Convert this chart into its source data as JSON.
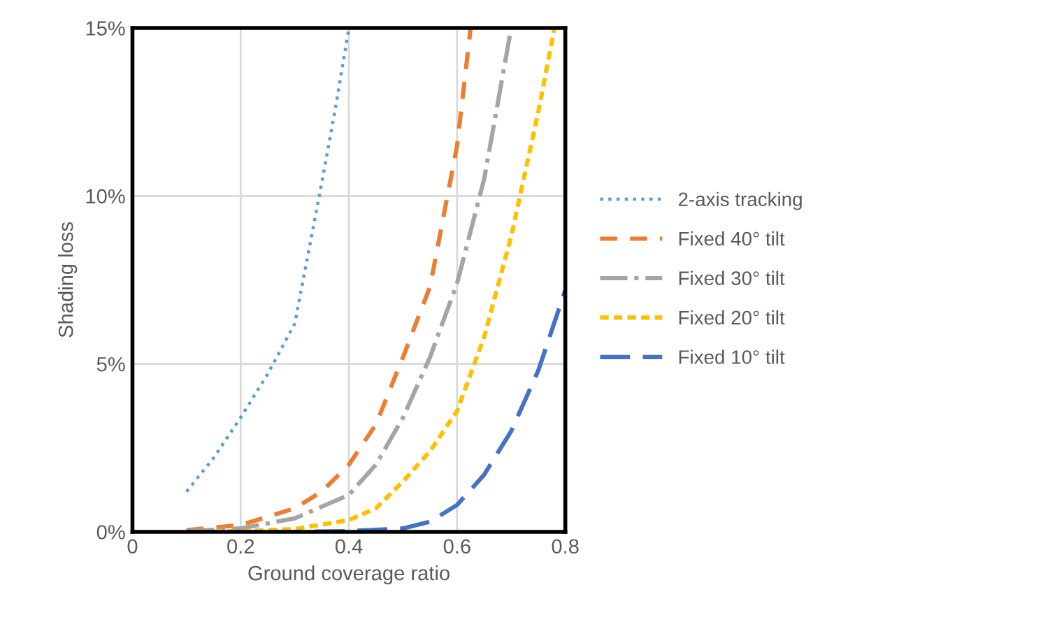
{
  "chart_data": {
    "type": "line",
    "xlabel": "Ground coverage ratio",
    "ylabel": "Shading loss",
    "xlim": [
      0,
      0.8
    ],
    "xticks": [
      {
        "value": 0,
        "label": "0"
      },
      0.2,
      0.4,
      0.6,
      0.8
    ],
    "ylim": [
      0,
      15
    ],
    "yticks": [
      {
        "value": 0,
        "label": "0%"
      },
      {
        "value": 5,
        "label": "5%"
      },
      {
        "value": 10,
        "label": "10%"
      },
      {
        "value": 15,
        "label": "15%"
      }
    ],
    "grid": true,
    "legend": "right",
    "marker": "none",
    "series": [
      {
        "name": "2-axis tracking",
        "color": "#5b9bd5",
        "line_style": "dotted",
        "x": [
          0.1,
          0.15,
          0.2,
          0.25,
          0.3,
          0.35,
          0.375,
          0.4
        ],
        "values": [
          1.2,
          2.2,
          3.4,
          4.7,
          6.2,
          10.4,
          12.6,
          15
        ]
      },
      {
        "name": "Fixed 40° tilt",
        "color": "#ed7d31",
        "line_style": "dashed",
        "x": [
          0.1,
          0.2,
          0.3,
          0.35,
          0.4,
          0.45,
          0.5,
          0.55,
          0.6,
          0.625
        ],
        "values": [
          0.05,
          0.2,
          0.7,
          1.2,
          2.0,
          3.2,
          5.2,
          7.3,
          11.5,
          15
        ]
      },
      {
        "name": "Fixed 30° tilt",
        "color": "#a5a5a5",
        "line_style": "dashdot",
        "x": [
          0.1,
          0.2,
          0.3,
          0.4,
          0.45,
          0.5,
          0.55,
          0.6,
          0.65,
          0.7
        ],
        "values": [
          0.02,
          0.1,
          0.4,
          1.1,
          2.0,
          3.4,
          5.2,
          7.4,
          10.5,
          15
        ]
      },
      {
        "name": "Fixed 20° tilt",
        "color": "#ffc000",
        "line_style": "dashed",
        "x": [
          0.1,
          0.2,
          0.3,
          0.4,
          0.45,
          0.5,
          0.55,
          0.6,
          0.65,
          0.7,
          0.75,
          0.78
        ],
        "values": [
          0,
          0.02,
          0.08,
          0.35,
          0.7,
          1.5,
          2.4,
          3.6,
          5.8,
          8.8,
          12.5,
          15
        ]
      },
      {
        "name": "Fixed 10° tilt",
        "color": "#4472c4",
        "line_style": "dashed",
        "x": [
          0.1,
          0.3,
          0.4,
          0.5,
          0.55,
          0.6,
          0.65,
          0.7,
          0.75,
          0.8
        ],
        "values": [
          0,
          0,
          0.02,
          0.1,
          0.3,
          0.8,
          1.7,
          3.0,
          4.8,
          7.2
        ]
      }
    ]
  }
}
